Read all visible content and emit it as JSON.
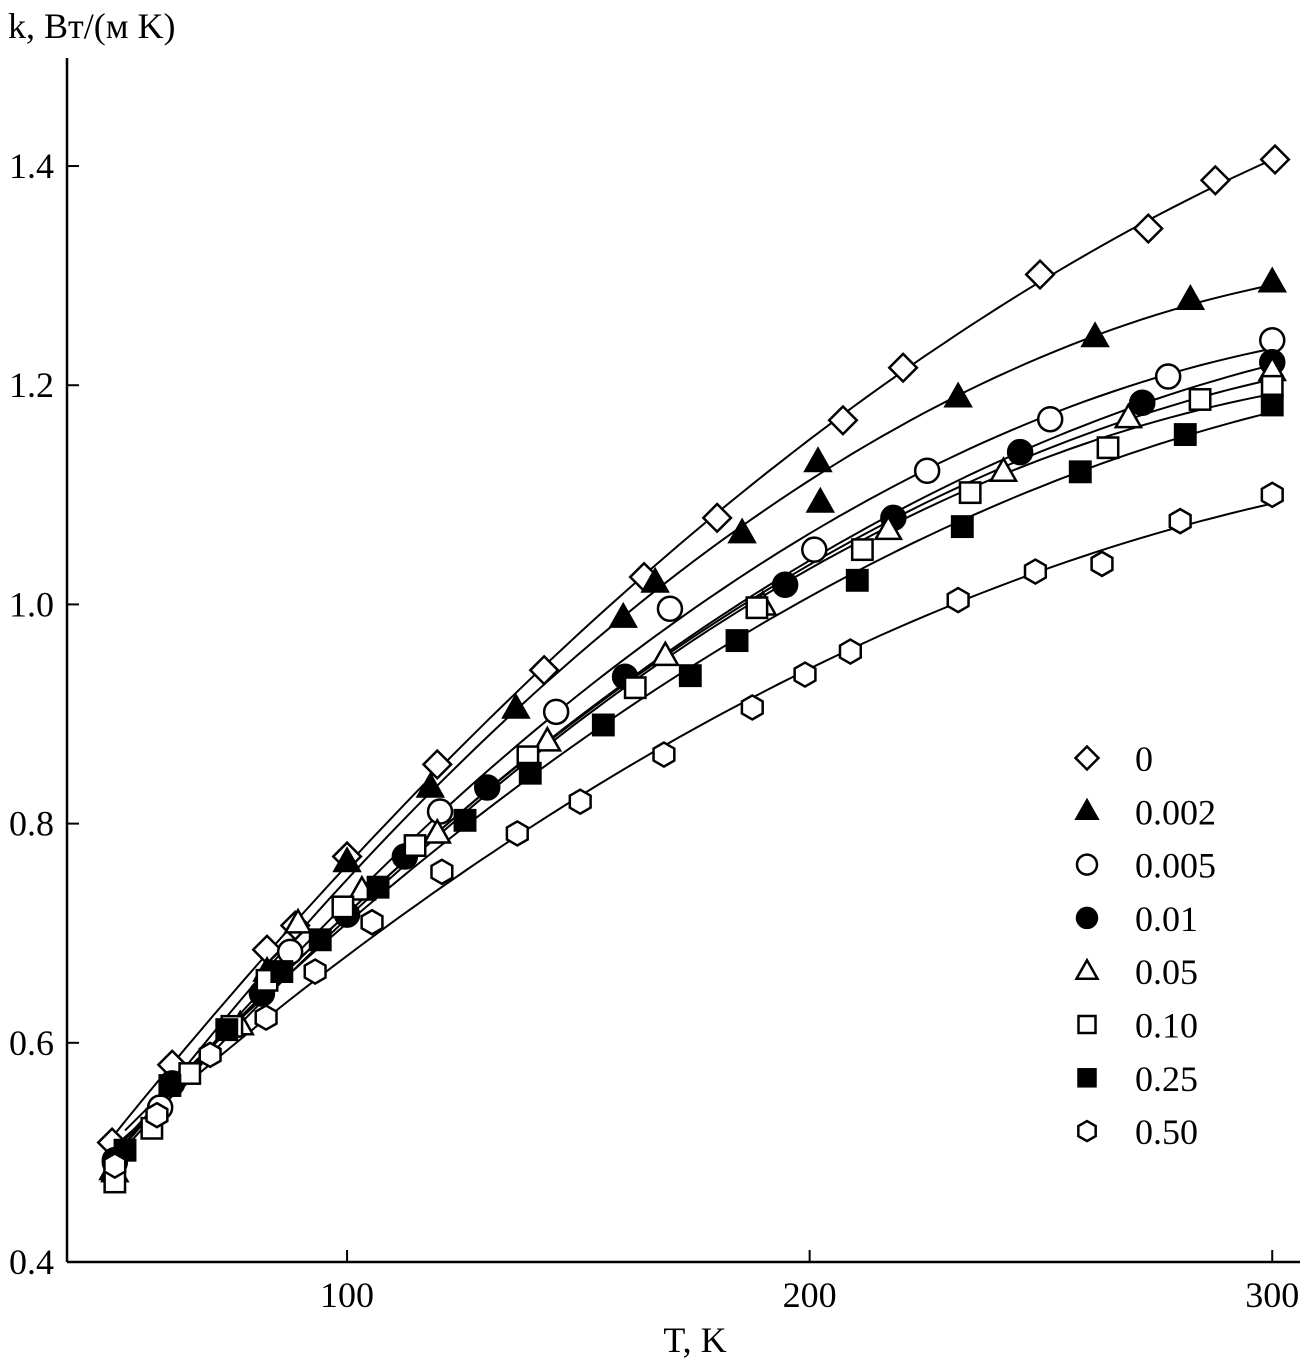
{
  "chart_data": {
    "type": "scatter",
    "ylabel": "k, Вт/(м K)",
    "xlabel": "T, K",
    "xlim": [
      40,
      306
    ],
    "ylim": [
      0.4,
      1.49
    ],
    "xticks": [
      100,
      200,
      300
    ],
    "yticks": [
      0.4,
      0.6,
      0.8,
      {
        "value": 1,
        "label": "1.0"
      },
      1.2,
      1.4
    ],
    "legend": "lower right",
    "fit_curves": true,
    "series": [
      {
        "name": "0",
        "marker": "diamond",
        "filled": false,
        "color": "#000000",
        "x": [
          49.2,
          62.2,
          82.7,
          88.8,
          100,
          119.5,
          142.6,
          164.2,
          180,
          207.2,
          220.2,
          249.8,
          273.2,
          287.7,
          300.6
        ],
        "values": [
          0.509,
          0.58,
          0.685,
          0.707,
          0.77,
          0.854,
          0.94,
          1.025,
          1.079,
          1.168,
          1.216,
          1.301,
          1.343,
          1.387,
          1.406
        ]
      },
      {
        "name": "0.002",
        "marker": "triangle",
        "filled": true,
        "color": "#000000",
        "x": [
          49.4,
          82.7,
          100,
          118,
          136.5,
          159.7,
          166.6,
          185.4,
          201.8,
          202.3,
          232.1,
          261.7,
          282.3,
          300
        ],
        "values": [
          0.484,
          0.665,
          0.765,
          0.833,
          0.905,
          0.988,
          1.02,
          1.065,
          1.13,
          1.093,
          1.189,
          1.244,
          1.278,
          1.294
        ]
      },
      {
        "name": "0.005",
        "marker": "circle",
        "filled": false,
        "color": "#000000",
        "x": [
          49.8,
          59.6,
          87.7,
          120.1,
          145.2,
          169.8,
          201,
          225.4,
          252,
          277.5,
          300
        ],
        "values": [
          0.491,
          0.541,
          0.683,
          0.811,
          0.902,
          0.996,
          1.05,
          1.122,
          1.169,
          1.208,
          1.241
        ]
      },
      {
        "name": "0.01",
        "marker": "circle",
        "filled": true,
        "color": "#000000",
        "x": [
          49.8,
          62.2,
          81.6,
          100,
          112.5,
          130.3,
          160.1,
          194.7,
          218.1,
          245.5,
          271.9,
          300
        ],
        "values": [
          0.493,
          0.563,
          0.645,
          0.717,
          0.77,
          0.833,
          0.934,
          1.018,
          1.079,
          1.139,
          1.184,
          1.221
        ]
      },
      {
        "name": "0.05",
        "marker": "triangle",
        "filled": false,
        "color": "#000000",
        "x": [
          49.8,
          76.9,
          89.4,
          103.2,
          119.5,
          143.3,
          168.8,
          189.9,
          217,
          241.9,
          268.9,
          300
        ],
        "values": [
          0.482,
          0.616,
          0.709,
          0.739,
          0.791,
          0.875,
          0.953,
          0.999,
          1.068,
          1.121,
          1.17,
          1.213
        ]
      },
      {
        "name": "0.10",
        "marker": "square",
        "filled": false,
        "color": "#000000",
        "x": [
          49.8,
          57.8,
          66,
          75.1,
          82.7,
          99.1,
          114.7,
          139.1,
          162.3,
          188.6,
          211.4,
          234.7,
          264.5,
          284.4,
          300
        ],
        "values": [
          0.473,
          0.522,
          0.572,
          0.615,
          0.657,
          0.724,
          0.78,
          0.861,
          0.924,
          0.997,
          1.05,
          1.102,
          1.143,
          1.187,
          1.199
        ]
      },
      {
        "name": "0.25",
        "marker": "square",
        "filled": true,
        "color": "#000000",
        "x": [
          52,
          61.7,
          74,
          85.9,
          94.2,
          106.7,
          125.5,
          139.6,
          155.4,
          174.2,
          184.3,
          210.3,
          233,
          258.5,
          281.2,
          300
        ],
        "values": [
          0.502,
          0.561,
          0.612,
          0.665,
          0.694,
          0.742,
          0.803,
          0.846,
          0.89,
          0.935,
          0.967,
          1.022,
          1.071,
          1.121,
          1.155,
          1.182
        ]
      },
      {
        "name": "0.50",
        "marker": "hexagon",
        "filled": false,
        "color": "#000000",
        "x": [
          49.8,
          58.9,
          70.4,
          82.5,
          93.1,
          105.4,
          120.5,
          136.8,
          150.4,
          168.5,
          187.6,
          199,
          208.8,
          232.1,
          248.8,
          263.2,
          280.1,
          300
        ],
        "values": [
          0.488,
          0.534,
          0.589,
          0.623,
          0.665,
          0.71,
          0.756,
          0.791,
          0.82,
          0.863,
          0.906,
          0.936,
          0.957,
          1.004,
          1.03,
          1.037,
          1.076,
          1.1
        ]
      }
    ]
  }
}
